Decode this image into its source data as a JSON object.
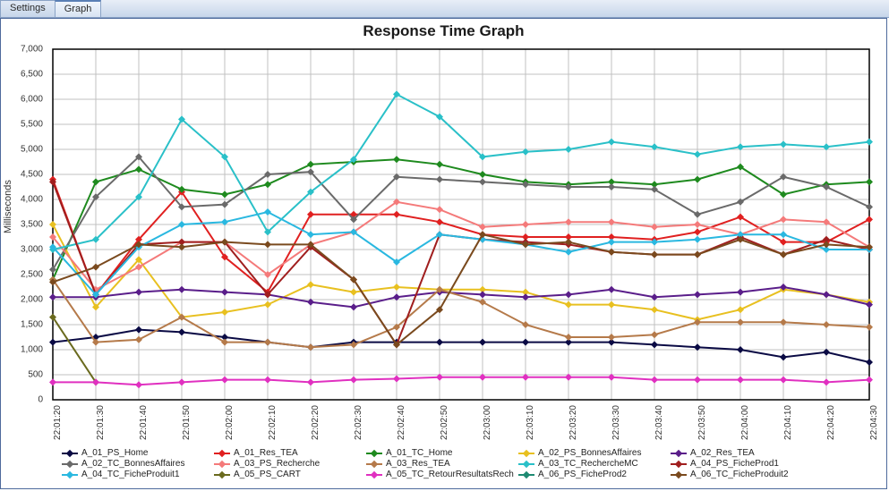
{
  "tabs": [
    {
      "label": "Settings",
      "active": false
    },
    {
      "label": "Graph",
      "active": true
    }
  ],
  "chart": {
    "title": "Response Time Graph",
    "ylabel": "Milliseconds",
    "background_color": "#ffffff",
    "grid_color": "#c0c0c0",
    "axis_color": "#000000",
    "title_fontsize": 17,
    "label_fontsize": 11,
    "tick_fontsize": 10,
    "line_width": 2,
    "marker_size": 4,
    "ylim": [
      0,
      7000
    ],
    "ytick_step": 500,
    "yticks": [
      "0",
      "500",
      "1,000",
      "1,500",
      "2,000",
      "2,500",
      "3,000",
      "3,500",
      "4,000",
      "4,500",
      "5,000",
      "5,500",
      "6,000",
      "6,500",
      "7,000"
    ],
    "xticks": [
      "22:01:20",
      "22:01:30",
      "22:01:40",
      "22:01:50",
      "22:02:00",
      "22:02:10",
      "22:02:20",
      "22:02:30",
      "22:02:40",
      "22:02:50",
      "22:03:00",
      "22:03:10",
      "22:03:20",
      "22:03:30",
      "22:03:40",
      "22:03:50",
      "22:04:00",
      "22:04:10",
      "22:04:20",
      "22:04:30"
    ],
    "series": [
      {
        "name": "A_01_PS_Home",
        "color": "#0a0a44",
        "data": [
          1150,
          1250,
          1400,
          1350,
          1250,
          1150,
          1050,
          1150,
          1150,
          1150,
          1150,
          1150,
          1150,
          1150,
          1100,
          1050,
          1000,
          850,
          950,
          750
        ]
      },
      {
        "name": "A_01_Res_TEA",
        "color": "#e02020",
        "data": [
          4400,
          2100,
          3200,
          4150,
          2850,
          2150,
          3700,
          3700,
          3700,
          3550,
          3300,
          3250,
          3250,
          3250,
          3200,
          3350,
          3650,
          3150,
          3150,
          3600
        ]
      },
      {
        "name": "A_01_TC_Home",
        "color": "#1e8a1e",
        "data": [
          2400,
          4350,
          4600,
          4200,
          4100,
          4300,
          4700,
          4750,
          4800,
          4700,
          4500,
          4350,
          4300,
          4350,
          4300,
          4400,
          4650,
          4100,
          4300,
          4350
        ]
      },
      {
        "name": "A_02_PS_BonnesAffaires",
        "color": "#e8c020",
        "data": [
          3500,
          1850,
          2800,
          1650,
          1750,
          1900,
          2300,
          2150,
          2250,
          2200,
          2200,
          2150,
          1900,
          1900,
          1800,
          1600,
          1800,
          2200,
          2100,
          1950
        ]
      },
      {
        "name": "A_02_Res_TEA",
        "color": "#5a1e8a",
        "data": [
          2050,
          2050,
          2150,
          2200,
          2150,
          2100,
          1950,
          1850,
          2050,
          2150,
          2100,
          2050,
          2100,
          2200,
          2050,
          2100,
          2150,
          2250,
          2100,
          1900
        ]
      },
      {
        "name": "A_02_TC_BonnesAffaires",
        "color": "#6a6a6a",
        "data": [
          2600,
          4050,
          4850,
          3850,
          3900,
          4500,
          4550,
          3600,
          4450,
          4400,
          4350,
          4300,
          4250,
          4250,
          4200,
          3700,
          3950,
          4450,
          4250,
          3850
        ]
      },
      {
        "name": "A_03_PS_Recherche",
        "color": "#f47a7a",
        "data": [
          3250,
          2200,
          2650,
          3150,
          3150,
          2500,
          3100,
          3350,
          3950,
          3800,
          3450,
          3500,
          3550,
          3550,
          3450,
          3500,
          3300,
          3600,
          3550,
          3050
        ]
      },
      {
        "name": "A_03_Res_TEA",
        "color": "#b57a4a",
        "data": [
          2400,
          1150,
          1200,
          1650,
          1150,
          1150,
          1050,
          1100,
          1450,
          2200,
          1950,
          1500,
          1250,
          1250,
          1300,
          1550,
          1550,
          1550,
          1500,
          1450
        ]
      },
      {
        "name": "A_03_TC_RechercheMC",
        "color": "#2ac0c8",
        "data": [
          3000,
          3200,
          4050,
          5600,
          4850,
          3350,
          4150,
          4800,
          6100,
          5650,
          4850,
          4950,
          5000,
          5150,
          5050,
          4900,
          5050,
          5100,
          5050,
          5150
        ]
      },
      {
        "name": "A_04_PS_FicheProd1",
        "color": "#a01e1e",
        "data": [
          4350,
          2100,
          3100,
          3150,
          3150,
          2100,
          3050,
          2400,
          1100,
          3300,
          3200,
          3150,
          3100,
          2950,
          2900,
          2900,
          3250,
          2900,
          3200,
          3000
        ]
      },
      {
        "name": "A_04_TC_FicheProduit1",
        "color": "#2ab8e0",
        "data": [
          3050,
          2100,
          3050,
          3500,
          3550,
          3750,
          3300,
          3350,
          2750,
          3300,
          3200,
          3100,
          2950,
          3150,
          3150,
          3200,
          3300,
          3300,
          3000,
          3000
        ]
      },
      {
        "name": "A_05_PS_CART",
        "color": "#6a6a1e",
        "data": [
          1650,
          350,
          null,
          null,
          null,
          null,
          null,
          null,
          null,
          null,
          null,
          null,
          null,
          null,
          null,
          null,
          null,
          null,
          null,
          null
        ]
      },
      {
        "name": "A_05_TC_RetourResultatsRech",
        "color": "#e030c0",
        "data": [
          350,
          350,
          300,
          350,
          400,
          400,
          350,
          400,
          420,
          450,
          450,
          450,
          450,
          450,
          400,
          400,
          400,
          400,
          350,
          400
        ]
      },
      {
        "name": "A_06_PS_FicheProd2",
        "color": "#1e8a72",
        "data": [
          null,
          null,
          null,
          null,
          null,
          null,
          null,
          null,
          null,
          null,
          null,
          null,
          null,
          null,
          null,
          null,
          null,
          null,
          null,
          null
        ]
      },
      {
        "name": "A_06_TC_FicheProduit2",
        "color": "#7a4a1e",
        "data": [
          2350,
          2650,
          3100,
          3050,
          3150,
          3100,
          3100,
          2400,
          1100,
          1800,
          3300,
          3100,
          3150,
          2950,
          2900,
          2900,
          3200,
          2900,
          3100,
          3050
        ]
      }
    ]
  }
}
